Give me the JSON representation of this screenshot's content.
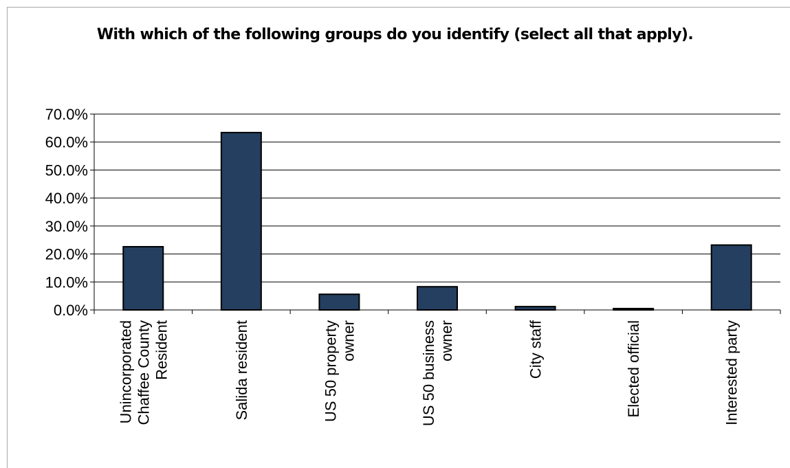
{
  "chart_data": {
    "type": "bar",
    "title": "With which of the following groups do you identify (select all that apply).",
    "categories": [
      [
        "Unincorporated",
        "Chaffee County",
        "Resident"
      ],
      [
        "Salida resident"
      ],
      [
        "US 50 property",
        "owner"
      ],
      [
        "US 50 business",
        "owner"
      ],
      [
        "City staff"
      ],
      [
        "Elected official"
      ],
      [
        "Interested party"
      ]
    ],
    "values": [
      22.6,
      63.4,
      5.6,
      8.3,
      1.2,
      0.5,
      23.2
    ],
    "ylim": [
      0,
      70
    ],
    "ytick_step": 10,
    "ytick_labels": [
      "0.0%",
      "10.0%",
      "20.0%",
      "30.0%",
      "40.0%",
      "50.0%",
      "60.0%",
      "70.0%"
    ],
    "grid": true,
    "bar_color": "#243f60",
    "xlabel": "",
    "ylabel": ""
  }
}
